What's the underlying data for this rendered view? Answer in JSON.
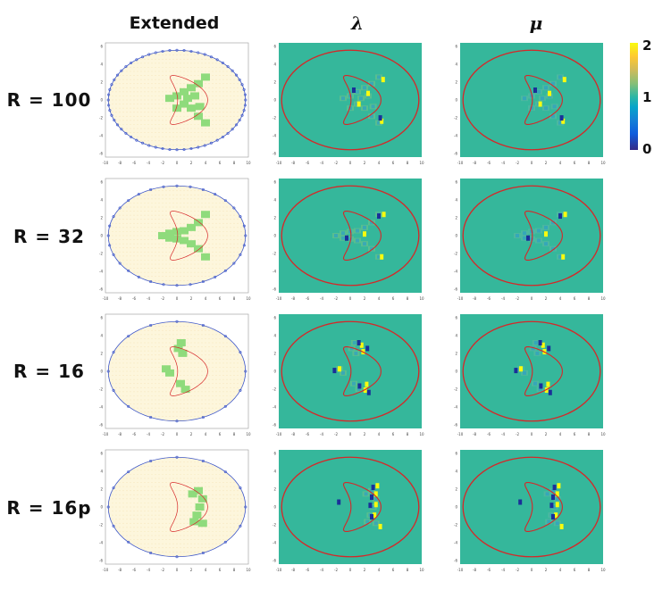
{
  "headers": {
    "extended": "Extended",
    "lambda": "λ",
    "mu": "μ"
  },
  "rows": [
    {
      "label": "R = 100",
      "panel_kind": "r100"
    },
    {
      "label": "R = 32",
      "panel_kind": "r32"
    },
    {
      "label": "R = 16",
      "panel_kind": "r16"
    },
    {
      "label": "R = 16p",
      "panel_kind": "r16p"
    }
  ],
  "colorbar": {
    "ticks": [
      "2",
      "1",
      "0"
    ],
    "min": 0,
    "max": 2
  },
  "axes": {
    "x_ticks": [
      "-10",
      "-8",
      "-6",
      "-4",
      "-2",
      "0",
      "2",
      "4",
      "6",
      "8",
      "10"
    ],
    "y_ticks": [
      "6",
      "4",
      "2",
      "0",
      "-2",
      "-4",
      "-6"
    ]
  },
  "colors": {
    "background_field": "#35b79b",
    "ellipse": "#d62728",
    "kite": "#d62728",
    "extended_fill": "#fdf6dc",
    "extended_dots": "#e8c980",
    "extended_inner": "#8fdb7c",
    "boundary_points": "#3b55c9",
    "high": "#f9fb0e",
    "low": "#1a2f99"
  }
}
